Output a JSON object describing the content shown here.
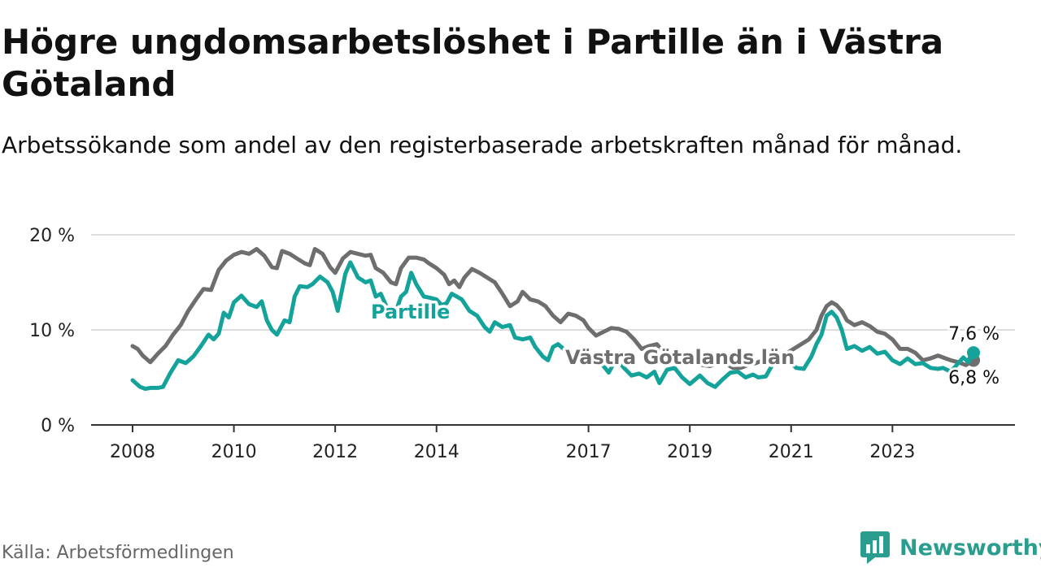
{
  "title": "Högre ungdomsarbetslöshet i Partille än i Västra Götaland",
  "subtitle": "Arbetssökande som andel av den registerbaserade arbetskraften månad för månad.",
  "source": "Källa: Arbetsförmedlingen",
  "brand": {
    "name": "Newsworthy",
    "icon": "newsworthy-logo-icon"
  },
  "colors": {
    "partille": "#13a39a",
    "vgl": "#6e6e6e",
    "grid": "#dddddd",
    "axis": "#333333",
    "brand": "#2a9d8f"
  },
  "chart_data": {
    "type": "line",
    "title": "Högre ungdomsarbetslöshet i Partille än i Västra Götaland",
    "xlabel": "",
    "ylabel": "",
    "xlim": [
      2008,
      2024.6
    ],
    "ylim": [
      0,
      20
    ],
    "y_ticks": [
      {
        "value": 0,
        "label": "0 %"
      },
      {
        "value": 10,
        "label": "10 %"
      },
      {
        "value": 20,
        "label": "20 %"
      }
    ],
    "x_ticks": [
      {
        "value": 2008,
        "label": "2008"
      },
      {
        "value": 2010,
        "label": "2010"
      },
      {
        "value": 2012,
        "label": "2012"
      },
      {
        "value": 2014,
        "label": "2014"
      },
      {
        "value": 2017,
        "label": "2017"
      },
      {
        "value": 2019,
        "label": "2019"
      },
      {
        "value": 2021,
        "label": "2021"
      },
      {
        "value": 2023,
        "label": "2023"
      }
    ],
    "grid": true,
    "series": [
      {
        "name": "Partille",
        "label": "Partille",
        "end_label": "7,6 %",
        "points": [
          [
            2008.0,
            4.7
          ],
          [
            2008.15,
            4.0
          ],
          [
            2008.25,
            3.8
          ],
          [
            2008.35,
            3.9
          ],
          [
            2008.5,
            3.9
          ],
          [
            2008.6,
            4.0
          ],
          [
            2008.75,
            5.5
          ],
          [
            2008.9,
            6.8
          ],
          [
            2009.05,
            6.5
          ],
          [
            2009.2,
            7.2
          ],
          [
            2009.35,
            8.3
          ],
          [
            2009.5,
            9.5
          ],
          [
            2009.6,
            9.0
          ],
          [
            2009.7,
            9.6
          ],
          [
            2009.8,
            11.8
          ],
          [
            2009.9,
            11.3
          ],
          [
            2010.0,
            12.9
          ],
          [
            2010.15,
            13.6
          ],
          [
            2010.3,
            12.7
          ],
          [
            2010.45,
            12.4
          ],
          [
            2010.55,
            13.0
          ],
          [
            2010.65,
            11.0
          ],
          [
            2010.75,
            10.0
          ],
          [
            2010.85,
            9.5
          ],
          [
            2011.0,
            11.0
          ],
          [
            2011.1,
            10.8
          ],
          [
            2011.2,
            13.5
          ],
          [
            2011.3,
            14.6
          ],
          [
            2011.45,
            14.5
          ],
          [
            2011.55,
            14.8
          ],
          [
            2011.7,
            15.6
          ],
          [
            2011.85,
            15.0
          ],
          [
            2011.95,
            14.0
          ],
          [
            2012.05,
            12.0
          ],
          [
            2012.2,
            15.9
          ],
          [
            2012.3,
            17.1
          ],
          [
            2012.45,
            15.5
          ],
          [
            2012.6,
            15.0
          ],
          [
            2012.7,
            15.2
          ],
          [
            2012.8,
            13.5
          ],
          [
            2012.9,
            13.8
          ],
          [
            2013.05,
            12.0
          ],
          [
            2013.15,
            11.2
          ],
          [
            2013.3,
            13.5
          ],
          [
            2013.4,
            14.0
          ],
          [
            2013.5,
            16.0
          ],
          [
            2013.6,
            14.8
          ],
          [
            2013.75,
            13.5
          ],
          [
            2013.85,
            13.4
          ],
          [
            2014.0,
            13.2
          ],
          [
            2014.1,
            12.6
          ],
          [
            2014.2,
            12.8
          ],
          [
            2014.3,
            13.8
          ],
          [
            2014.5,
            13.2
          ],
          [
            2014.65,
            12.0
          ],
          [
            2014.8,
            11.5
          ],
          [
            2014.95,
            10.3
          ],
          [
            2015.05,
            9.8
          ],
          [
            2015.15,
            10.8
          ],
          [
            2015.3,
            10.3
          ],
          [
            2015.45,
            10.5
          ],
          [
            2015.55,
            9.2
          ],
          [
            2015.7,
            9.0
          ],
          [
            2015.85,
            9.2
          ],
          [
            2015.95,
            8.2
          ],
          [
            2016.1,
            7.2
          ],
          [
            2016.2,
            6.8
          ],
          [
            2016.3,
            8.2
          ],
          [
            2016.4,
            8.5
          ],
          [
            2016.55,
            7.8
          ],
          [
            2016.7,
            7.3
          ],
          [
            2016.85,
            7.0
          ],
          [
            2017.0,
            6.5
          ],
          [
            2017.1,
            7.4
          ],
          [
            2017.25,
            6.5
          ],
          [
            2017.4,
            5.5
          ],
          [
            2017.55,
            7.0
          ],
          [
            2017.7,
            6.0
          ],
          [
            2017.85,
            5.2
          ],
          [
            2018.0,
            5.4
          ],
          [
            2018.15,
            5.0
          ],
          [
            2018.3,
            5.6
          ],
          [
            2018.4,
            4.4
          ],
          [
            2018.55,
            5.8
          ],
          [
            2018.7,
            6.0
          ],
          [
            2018.85,
            5.0
          ],
          [
            2019.0,
            4.3
          ],
          [
            2019.2,
            5.2
          ],
          [
            2019.35,
            4.4
          ],
          [
            2019.5,
            4.0
          ],
          [
            2019.65,
            4.8
          ],
          [
            2019.8,
            5.5
          ],
          [
            2019.95,
            5.6
          ],
          [
            2020.1,
            5.0
          ],
          [
            2020.25,
            5.3
          ],
          [
            2020.35,
            5.0
          ],
          [
            2020.5,
            5.1
          ],
          [
            2020.65,
            6.5
          ],
          [
            2020.8,
            7.0
          ],
          [
            2020.95,
            6.8
          ],
          [
            2021.1,
            6.0
          ],
          [
            2021.25,
            5.9
          ],
          [
            2021.4,
            7.2
          ],
          [
            2021.5,
            8.5
          ],
          [
            2021.6,
            9.5
          ],
          [
            2021.7,
            11.5
          ],
          [
            2021.8,
            11.9
          ],
          [
            2021.9,
            11.3
          ],
          [
            2022.0,
            10.0
          ],
          [
            2022.1,
            8.0
          ],
          [
            2022.25,
            8.3
          ],
          [
            2022.4,
            7.8
          ],
          [
            2022.55,
            8.2
          ],
          [
            2022.7,
            7.5
          ],
          [
            2022.85,
            7.7
          ],
          [
            2023.0,
            6.8
          ],
          [
            2023.15,
            6.4
          ],
          [
            2023.3,
            7.0
          ],
          [
            2023.45,
            6.4
          ],
          [
            2023.6,
            6.5
          ],
          [
            2023.75,
            6.0
          ],
          [
            2023.9,
            5.9
          ],
          [
            2024.0,
            6.0
          ],
          [
            2024.15,
            5.6
          ],
          [
            2024.25,
            6.2
          ],
          [
            2024.4,
            7.1
          ],
          [
            2024.5,
            6.6
          ],
          [
            2024.6,
            7.6
          ]
        ]
      },
      {
        "name": "Västra Götalands län",
        "label": "Västra Götalands län",
        "end_label": "6,8 %",
        "points": [
          [
            2008.0,
            8.3
          ],
          [
            2008.1,
            8.0
          ],
          [
            2008.2,
            7.3
          ],
          [
            2008.35,
            6.6
          ],
          [
            2008.5,
            7.5
          ],
          [
            2008.65,
            8.3
          ],
          [
            2008.8,
            9.5
          ],
          [
            2008.95,
            10.5
          ],
          [
            2009.1,
            12.0
          ],
          [
            2009.25,
            13.2
          ],
          [
            2009.4,
            14.3
          ],
          [
            2009.55,
            14.2
          ],
          [
            2009.7,
            16.3
          ],
          [
            2009.85,
            17.3
          ],
          [
            2010.0,
            17.9
          ],
          [
            2010.15,
            18.2
          ],
          [
            2010.3,
            18.0
          ],
          [
            2010.45,
            18.5
          ],
          [
            2010.6,
            17.8
          ],
          [
            2010.75,
            16.6
          ],
          [
            2010.85,
            16.5
          ],
          [
            2010.95,
            18.3
          ],
          [
            2011.1,
            18.0
          ],
          [
            2011.25,
            17.5
          ],
          [
            2011.4,
            17.0
          ],
          [
            2011.5,
            16.8
          ],
          [
            2011.6,
            18.5
          ],
          [
            2011.75,
            18.0
          ],
          [
            2011.9,
            16.6
          ],
          [
            2012.0,
            16.0
          ],
          [
            2012.15,
            17.5
          ],
          [
            2012.3,
            18.2
          ],
          [
            2012.45,
            18.0
          ],
          [
            2012.6,
            17.8
          ],
          [
            2012.7,
            17.9
          ],
          [
            2012.8,
            16.5
          ],
          [
            2012.95,
            16.0
          ],
          [
            2013.1,
            15.0
          ],
          [
            2013.2,
            14.8
          ],
          [
            2013.3,
            16.5
          ],
          [
            2013.45,
            17.6
          ],
          [
            2013.6,
            17.6
          ],
          [
            2013.75,
            17.4
          ],
          [
            2013.85,
            17.0
          ],
          [
            2014.0,
            16.5
          ],
          [
            2014.15,
            15.8
          ],
          [
            2014.25,
            14.8
          ],
          [
            2014.35,
            15.2
          ],
          [
            2014.45,
            14.5
          ],
          [
            2014.55,
            15.5
          ],
          [
            2014.7,
            16.4
          ],
          [
            2014.85,
            16.0
          ],
          [
            2015.0,
            15.5
          ],
          [
            2015.15,
            15.0
          ],
          [
            2015.3,
            13.8
          ],
          [
            2015.45,
            12.5
          ],
          [
            2015.6,
            13.0
          ],
          [
            2015.7,
            14.0
          ],
          [
            2015.85,
            13.2
          ],
          [
            2016.0,
            13.0
          ],
          [
            2016.15,
            12.5
          ],
          [
            2016.3,
            11.5
          ],
          [
            2016.45,
            10.8
          ],
          [
            2016.6,
            11.7
          ],
          [
            2016.75,
            11.5
          ],
          [
            2016.9,
            11.0
          ],
          [
            2017.0,
            10.2
          ],
          [
            2017.15,
            9.4
          ],
          [
            2017.3,
            9.8
          ],
          [
            2017.45,
            10.2
          ],
          [
            2017.6,
            10.1
          ],
          [
            2017.75,
            9.8
          ],
          [
            2017.9,
            9.0
          ],
          [
            2018.05,
            8.0
          ],
          [
            2018.2,
            8.3
          ],
          [
            2018.35,
            8.5
          ],
          [
            2018.5,
            7.5
          ],
          [
            2018.65,
            7.5
          ],
          [
            2018.8,
            7.0
          ],
          [
            2018.95,
            6.8
          ],
          [
            2019.1,
            6.5
          ],
          [
            2019.25,
            6.3
          ],
          [
            2019.4,
            6.2
          ],
          [
            2019.55,
            6.5
          ],
          [
            2019.7,
            6.5
          ],
          [
            2019.85,
            6.0
          ],
          [
            2020.0,
            6.0
          ],
          [
            2020.15,
            6.3
          ],
          [
            2020.3,
            6.5
          ],
          [
            2020.45,
            6.8
          ],
          [
            2020.6,
            6.5
          ],
          [
            2020.75,
            7.0
          ],
          [
            2020.9,
            7.5
          ],
          [
            2021.05,
            8.0
          ],
          [
            2021.2,
            8.5
          ],
          [
            2021.35,
            9.0
          ],
          [
            2021.5,
            10.0
          ],
          [
            2021.6,
            11.5
          ],
          [
            2021.7,
            12.5
          ],
          [
            2021.8,
            12.9
          ],
          [
            2021.9,
            12.6
          ],
          [
            2022.0,
            12.0
          ],
          [
            2022.1,
            11.0
          ],
          [
            2022.25,
            10.5
          ],
          [
            2022.4,
            10.8
          ],
          [
            2022.55,
            10.4
          ],
          [
            2022.7,
            9.8
          ],
          [
            2022.85,
            9.6
          ],
          [
            2023.0,
            9.0
          ],
          [
            2023.15,
            8.0
          ],
          [
            2023.3,
            8.0
          ],
          [
            2023.45,
            7.6
          ],
          [
            2023.6,
            6.8
          ],
          [
            2023.75,
            7.0
          ],
          [
            2023.9,
            7.3
          ],
          [
            2024.05,
            7.0
          ],
          [
            2024.15,
            6.8
          ],
          [
            2024.3,
            6.6
          ],
          [
            2024.45,
            6.3
          ],
          [
            2024.6,
            6.8
          ]
        ]
      }
    ]
  }
}
